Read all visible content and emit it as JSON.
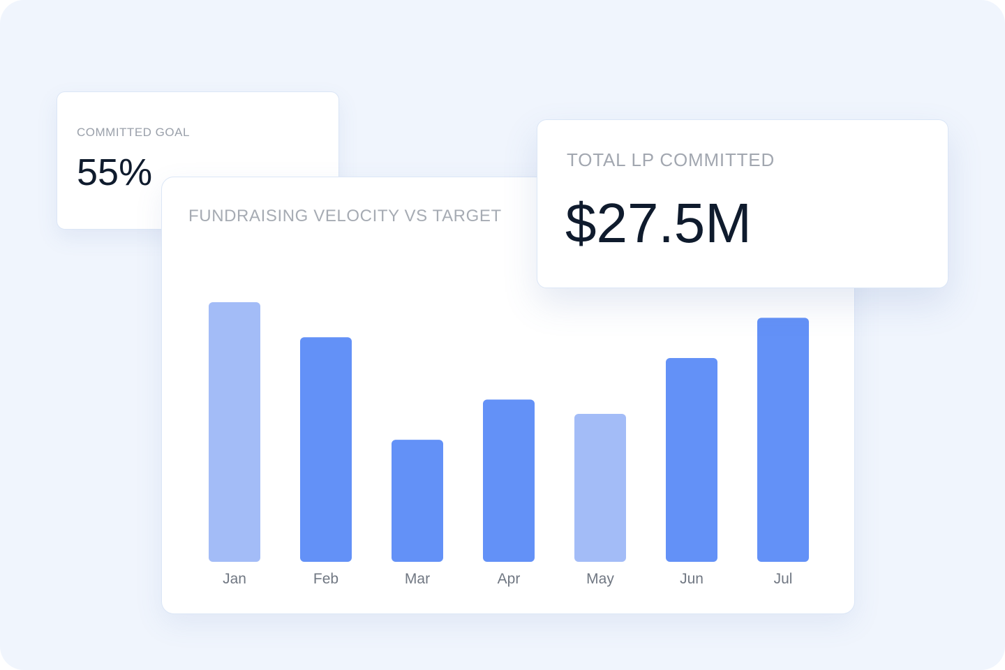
{
  "committed_goal": {
    "label": "COMMITTED GOAL",
    "value": "55%"
  },
  "total_lp": {
    "label": "TOTAL LP COMMITTED",
    "value": "$27.5M"
  },
  "chart": {
    "title": "FUNDRAISING VELOCITY VS TARGET"
  },
  "colors": {
    "bar_primary": "#6391f7",
    "bar_muted": "#a3bcf7",
    "background": "#f0f5fd",
    "text_dark": "#0f1b2d",
    "text_muted": "#a6abb3"
  },
  "chart_data": {
    "type": "bar",
    "title": "FUNDRAISING VELOCITY VS TARGET",
    "categories": [
      "Jan",
      "Feb",
      "Mar",
      "Apr",
      "May",
      "Jun",
      "Jul"
    ],
    "values": [
      100,
      86.5,
      47,
      62.5,
      57,
      78.5,
      94
    ],
    "highlight": [
      false,
      true,
      true,
      true,
      false,
      true,
      true
    ],
    "xlabel": "",
    "ylabel": "",
    "ylim": [
      0,
      100
    ],
    "grid": false,
    "legend": "none"
  }
}
